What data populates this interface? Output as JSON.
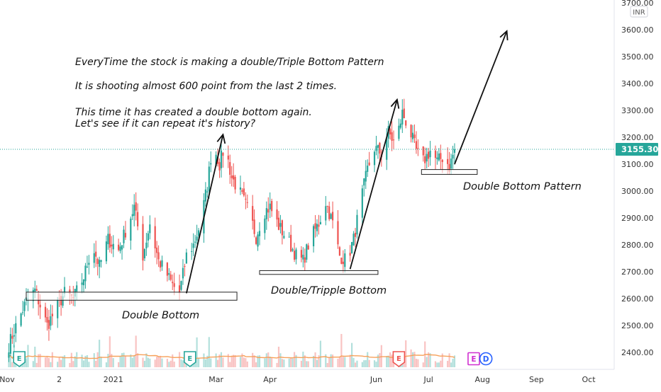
{
  "chart_data": {
    "type": "candlestick",
    "currency": "INR",
    "ylim": [
      2350,
      3720
    ],
    "y_ticks": [
      2400,
      2500,
      2600,
      2700,
      2800,
      2900,
      3000,
      3100,
      3200,
      3300,
      3400,
      3500,
      3600,
      3700
    ],
    "y_tick_labels": [
      "2400.00",
      "2500.00",
      "2600.00",
      "2700.00",
      "2800.00",
      "2900.00",
      "3000.00",
      "3100.00",
      "3200.00",
      "3300.00",
      "3400.00",
      "3500.00",
      "3600.00",
      "3700.00"
    ],
    "x_ticks": [
      {
        "label": "Nov",
        "date": "2020-11-01"
      },
      {
        "label": "2",
        "date": "2020-12-01"
      },
      {
        "label": "2021",
        "date": "2021-01-01"
      },
      {
        "label": "Mar",
        "date": "2021-03-01"
      },
      {
        "label": "Apr",
        "date": "2021-04-01"
      },
      {
        "label": "Jun",
        "date": "2021-06-01"
      },
      {
        "label": "Jul",
        "date": "2021-07-01"
      },
      {
        "label": "Aug",
        "date": "2021-08-01"
      },
      {
        "label": "Sep",
        "date": "2021-09-01"
      },
      {
        "label": "Oct",
        "date": "2021-10-01"
      }
    ],
    "last_price": 3155.3,
    "last_price_label": "3155.30",
    "up_color": "#26a69a",
    "down_color": "#ef5350",
    "grid": false,
    "anchors": [
      {
        "date": "2020-11-01",
        "close": 2410
      },
      {
        "date": "2020-11-05",
        "close": 2480
      },
      {
        "date": "2020-11-12",
        "close": 2590
      },
      {
        "date": "2020-11-17",
        "close": 2630
      },
      {
        "date": "2020-11-24",
        "close": 2500
      },
      {
        "date": "2020-11-29",
        "close": 2560
      },
      {
        "date": "2020-12-04",
        "close": 2620
      },
      {
        "date": "2020-12-09",
        "close": 2600
      },
      {
        "date": "2020-12-15",
        "close": 2680
      },
      {
        "date": "2020-12-20",
        "close": 2800
      },
      {
        "date": "2020-12-24",
        "close": 2720
      },
      {
        "date": "2020-12-29",
        "close": 2820
      },
      {
        "date": "2021-01-04",
        "close": 2780
      },
      {
        "date": "2021-01-09",
        "close": 2870
      },
      {
        "date": "2021-01-13",
        "close": 2940
      },
      {
        "date": "2021-01-18",
        "close": 2760
      },
      {
        "date": "2021-01-22",
        "close": 2880
      },
      {
        "date": "2021-01-27",
        "close": 2740
      },
      {
        "date": "2021-01-31",
        "close": 2700
      },
      {
        "date": "2021-02-04",
        "close": 2650
      },
      {
        "date": "2021-02-08",
        "close": 2620
      },
      {
        "date": "2021-02-12",
        "close": 2760
      },
      {
        "date": "2021-02-16",
        "close": 2800
      },
      {
        "date": "2021-02-20",
        "close": 2880
      },
      {
        "date": "2021-02-24",
        "close": 3020
      },
      {
        "date": "2021-02-27",
        "close": 3180
      },
      {
        "date": "2021-03-03",
        "close": 3100
      },
      {
        "date": "2021-03-06",
        "close": 3170
      },
      {
        "date": "2021-03-10",
        "close": 3050
      },
      {
        "date": "2021-03-15",
        "close": 2990
      },
      {
        "date": "2021-03-20",
        "close": 2920
      },
      {
        "date": "2021-03-24",
        "close": 2830
      },
      {
        "date": "2021-03-28",
        "close": 2920
      },
      {
        "date": "2021-04-01",
        "close": 2940
      },
      {
        "date": "2021-04-06",
        "close": 2870
      },
      {
        "date": "2021-04-11",
        "close": 2820
      },
      {
        "date": "2021-04-16",
        "close": 2760
      },
      {
        "date": "2021-04-20",
        "close": 2740
      },
      {
        "date": "2021-04-24",
        "close": 2820
      },
      {
        "date": "2021-04-29",
        "close": 2880
      },
      {
        "date": "2021-05-03",
        "close": 2960
      },
      {
        "date": "2021-05-07",
        "close": 2880
      },
      {
        "date": "2021-05-11",
        "close": 2760
      },
      {
        "date": "2021-05-15",
        "close": 2740
      },
      {
        "date": "2021-05-19",
        "close": 2820
      },
      {
        "date": "2021-05-23",
        "close": 2960
      },
      {
        "date": "2021-05-27",
        "close": 3080
      },
      {
        "date": "2021-05-31",
        "close": 3160
      },
      {
        "date": "2021-06-04",
        "close": 3140
      },
      {
        "date": "2021-06-08",
        "close": 3220
      },
      {
        "date": "2021-06-12",
        "close": 3170
      },
      {
        "date": "2021-06-16",
        "close": 3290
      },
      {
        "date": "2021-06-20",
        "close": 3230
      },
      {
        "date": "2021-06-24",
        "close": 3150
      },
      {
        "date": "2021-06-28",
        "close": 3110
      },
      {
        "date": "2021-07-02",
        "close": 3150
      },
      {
        "date": "2021-07-06",
        "close": 3110
      },
      {
        "date": "2021-07-10",
        "close": 3130
      },
      {
        "date": "2021-07-13",
        "close": 3090
      },
      {
        "date": "2021-07-16",
        "close": 3155.3
      }
    ],
    "event_markers": [
      {
        "date": "2020-11-08",
        "letter": "E",
        "color": "#26a69a"
      },
      {
        "date": "2021-02-14",
        "letter": "E",
        "color": "#26a69a"
      },
      {
        "date": "2021-06-14",
        "letter": "E",
        "color": "#ef5350"
      }
    ],
    "future_markers": [
      {
        "date": "2021-07-27",
        "letter": "E",
        "color": "#d02fd0"
      },
      {
        "date": "2021-08-03",
        "letter": "D",
        "color": "#2962ff"
      }
    ],
    "annotations": {
      "text_line1": "EveryTime the stock is making a double/Triple Bottom Pattern",
      "text_line2": "It is shooting almost 600 point from the last 2 times.",
      "text_line3": "This time it has created a double bottom again.",
      "text_line4": "Let's see if it can repeat it's history?",
      "label_double_bottom": "Double Bottom",
      "label_tripple_bottom": "Double/Tripple Bottom",
      "label_pattern": "Double Bottom Pattern"
    }
  }
}
